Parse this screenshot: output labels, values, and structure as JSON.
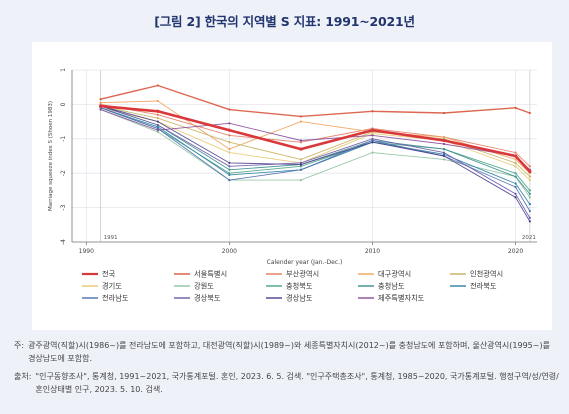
{
  "figure_title": "[그림 2] 한국의 지역별 S 지표: 1991~2021년",
  "notes": {
    "note_label": "주:",
    "note_text": "광주광역(직할)시(1986~)를 전라남도에 포함하고, 대전광역(직할)시(1989~)와 세종특별자치시(2012~)를 충청남도에 포함하며, 울산광역시(1995~)를 경상남도에 포함함.",
    "source_label": "출처:",
    "source_text": "\"인구동향조사\", 통계청, 1991~2021, 국가통계포털. 혼인, 2023. 6. 5. 검색. \"인구주택총조사\", 통계청, 1985~2020, 국가통계포털. 행정구역/성/연령/혼인상태별 인구, 2023. 5. 10. 검색."
  },
  "chart_data": {
    "type": "line",
    "xlabel": "Calender year (Jan.-Dec.)",
    "ylabel": "Marriage squeeze index S (Shoen 1983)",
    "xlim": [
      1989,
      2021.5
    ],
    "ylim": [
      -4,
      1
    ],
    "x_ticks": [
      1990,
      2000,
      2010,
      2020
    ],
    "y_ticks": [
      1,
      0,
      -1,
      -2,
      -3,
      -4
    ],
    "ref_lines": [
      1991,
      2021
    ],
    "ref_labels": [
      "1991",
      "2021"
    ],
    "grid": true,
    "legend_position": "bottom",
    "x": [
      1991,
      1995,
      2000,
      2005,
      2010,
      2015,
      2020,
      2021
    ],
    "series": [
      {
        "name": "전국",
        "color": "#d9373a",
        "width": 2.6,
        "values": [
          -0.05,
          -0.2,
          -0.75,
          -1.3,
          -0.75,
          -1.05,
          -1.5,
          -1.95
        ]
      },
      {
        "name": "서울특별시",
        "color": "#d9583f",
        "width": 1.4,
        "values": [
          0.15,
          0.55,
          -0.15,
          -0.35,
          -0.2,
          -0.25,
          -0.1,
          -0.25
        ]
      },
      {
        "name": "부산광역시",
        "color": "#e07a5f",
        "width": 0.9,
        "values": [
          0.0,
          -0.3,
          -0.9,
          -1.1,
          -0.7,
          -0.95,
          -1.4,
          -1.8
        ]
      },
      {
        "name": "대구광역시",
        "color": "#f0a25c",
        "width": 0.9,
        "values": [
          0.05,
          0.1,
          -1.3,
          -0.5,
          -0.8,
          -0.95,
          -1.6,
          -2.0
        ]
      },
      {
        "name": "인천광역시",
        "color": "#c8b060",
        "width": 0.9,
        "values": [
          -0.05,
          -0.4,
          -1.1,
          -1.6,
          -0.8,
          -1.0,
          -1.7,
          -2.1
        ]
      },
      {
        "name": "경기도",
        "color": "#e8c870",
        "width": 0.9,
        "values": [
          -0.1,
          -0.5,
          -1.4,
          -1.7,
          -0.85,
          -1.05,
          -1.8,
          -2.2
        ]
      },
      {
        "name": "강원도",
        "color": "#8fc3a0",
        "width": 0.9,
        "values": [
          -0.15,
          -0.8,
          -2.2,
          -2.2,
          -1.4,
          -1.6,
          -2.1,
          -2.7
        ]
      },
      {
        "name": "충청북도",
        "color": "#4aa38a",
        "width": 0.9,
        "values": [
          -0.1,
          -0.7,
          -2.0,
          -1.8,
          -1.1,
          -1.3,
          -2.0,
          -2.5
        ]
      },
      {
        "name": "충청남도",
        "color": "#3a8f8c",
        "width": 0.9,
        "values": [
          -0.05,
          -0.6,
          -1.9,
          -1.75,
          -1.05,
          -1.3,
          -2.1,
          -2.6
        ]
      },
      {
        "name": "전라북도",
        "color": "#2f7fa8",
        "width": 0.9,
        "values": [
          -0.1,
          -0.65,
          -2.05,
          -1.9,
          -1.1,
          -1.45,
          -2.3,
          -2.9
        ]
      },
      {
        "name": "전라남도",
        "color": "#4c6fb0",
        "width": 0.9,
        "values": [
          -0.1,
          -0.7,
          -2.2,
          -1.9,
          -1.05,
          -1.5,
          -2.4,
          -3.1
        ]
      },
      {
        "name": "경상북도",
        "color": "#6a5aa8",
        "width": 0.9,
        "values": [
          -0.05,
          -0.6,
          -1.8,
          -1.7,
          -1.0,
          -1.4,
          -2.6,
          -3.3
        ]
      },
      {
        "name": "경상남도",
        "color": "#4b3f8e",
        "width": 0.9,
        "values": [
          -0.05,
          -0.5,
          -1.7,
          -1.75,
          -1.1,
          -1.5,
          -2.7,
          -3.4
        ]
      },
      {
        "name": "제주특별자치도",
        "color": "#8a4a9a",
        "width": 0.9,
        "values": [
          -0.15,
          -0.75,
          -0.55,
          -1.05,
          -0.9,
          -1.15,
          -1.5,
          -1.9
        ]
      }
    ]
  }
}
